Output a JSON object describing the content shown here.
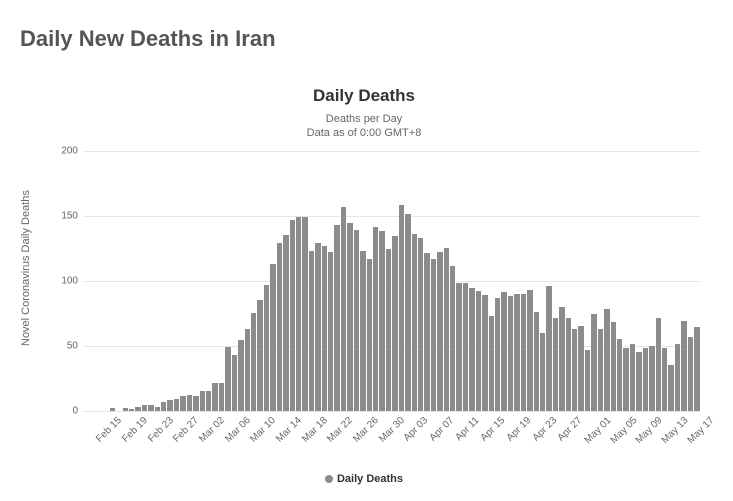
{
  "page_title": "Daily New Deaths in Iran",
  "chart": {
    "type": "bar",
    "title": "Daily Deaths",
    "subtitle_line1": "Deaths per Day",
    "subtitle_line2": "Data as of 0:00 GMT+8",
    "ylabel": "Novel Coronavirus Daily Deaths",
    "ylim": [
      0,
      200
    ],
    "ytick_step": 50,
    "yticks": [
      0,
      50,
      100,
      150,
      200
    ],
    "bar_color": "#8c8c8c",
    "grid_color": "#e6e6e6",
    "background_color": "#ffffff",
    "title_fontsize": 17,
    "subtitle_fontsize": 11,
    "axis_fontsize": 10,
    "categories": [
      "Feb 15",
      "Feb 16",
      "Feb 17",
      "Feb 18",
      "Feb 19",
      "Feb 20",
      "Feb 21",
      "Feb 22",
      "Feb 23",
      "Feb 24",
      "Feb 25",
      "Feb 26",
      "Feb 27",
      "Feb 28",
      "Feb 29",
      "Mar 01",
      "Mar 02",
      "Mar 03",
      "Mar 04",
      "Mar 05",
      "Mar 06",
      "Mar 07",
      "Mar 08",
      "Mar 09",
      "Mar 10",
      "Mar 11",
      "Mar 12",
      "Mar 13",
      "Mar 14",
      "Mar 15",
      "Mar 16",
      "Mar 17",
      "Mar 18",
      "Mar 19",
      "Mar 20",
      "Mar 21",
      "Mar 22",
      "Mar 23",
      "Mar 24",
      "Mar 25",
      "Mar 26",
      "Mar 27",
      "Mar 28",
      "Mar 29",
      "Mar 30",
      "Mar 31",
      "Apr 01",
      "Apr 02",
      "Apr 03",
      "Apr 04",
      "Apr 05",
      "Apr 06",
      "Apr 07",
      "Apr 08",
      "Apr 09",
      "Apr 10",
      "Apr 11",
      "Apr 12",
      "Apr 13",
      "Apr 14",
      "Apr 15",
      "Apr 16",
      "Apr 17",
      "Apr 18",
      "Apr 19",
      "Apr 20",
      "Apr 21",
      "Apr 22",
      "Apr 23",
      "Apr 24",
      "Apr 25",
      "Apr 26",
      "Apr 27",
      "Apr 28",
      "Apr 29",
      "Apr 30",
      "May 01",
      "May 02",
      "May 03",
      "May 04",
      "May 05",
      "May 06",
      "May 07",
      "May 08",
      "May 09",
      "May 10",
      "May 11",
      "May 12",
      "May 13",
      "May 14",
      "May 15",
      "May 16",
      "May 17",
      "May 18",
      "May 19",
      "May 20"
    ],
    "values": [
      0,
      0,
      0,
      0,
      2,
      0,
      2,
      1,
      3,
      4,
      4,
      3,
      7,
      8,
      9,
      11,
      12,
      11,
      15,
      15,
      21,
      21,
      49,
      43,
      54,
      63,
      75,
      85,
      97,
      113,
      129,
      135,
      147,
      149,
      149,
      123,
      129,
      127,
      122,
      143,
      157,
      144,
      139,
      123,
      117,
      141,
      138,
      124,
      134,
      158,
      151,
      136,
      133,
      121,
      117,
      122,
      125,
      111,
      98,
      98,
      94,
      92,
      89,
      73,
      87,
      91,
      88,
      90,
      90,
      93,
      76,
      60,
      96,
      71,
      80,
      71,
      63,
      65,
      47,
      74,
      63,
      78,
      68,
      55,
      48,
      51,
      45,
      48,
      50,
      71,
      48,
      35,
      51,
      69,
      57,
      64
    ],
    "xtick_every": 4,
    "legend_label": "Daily Deaths"
  }
}
